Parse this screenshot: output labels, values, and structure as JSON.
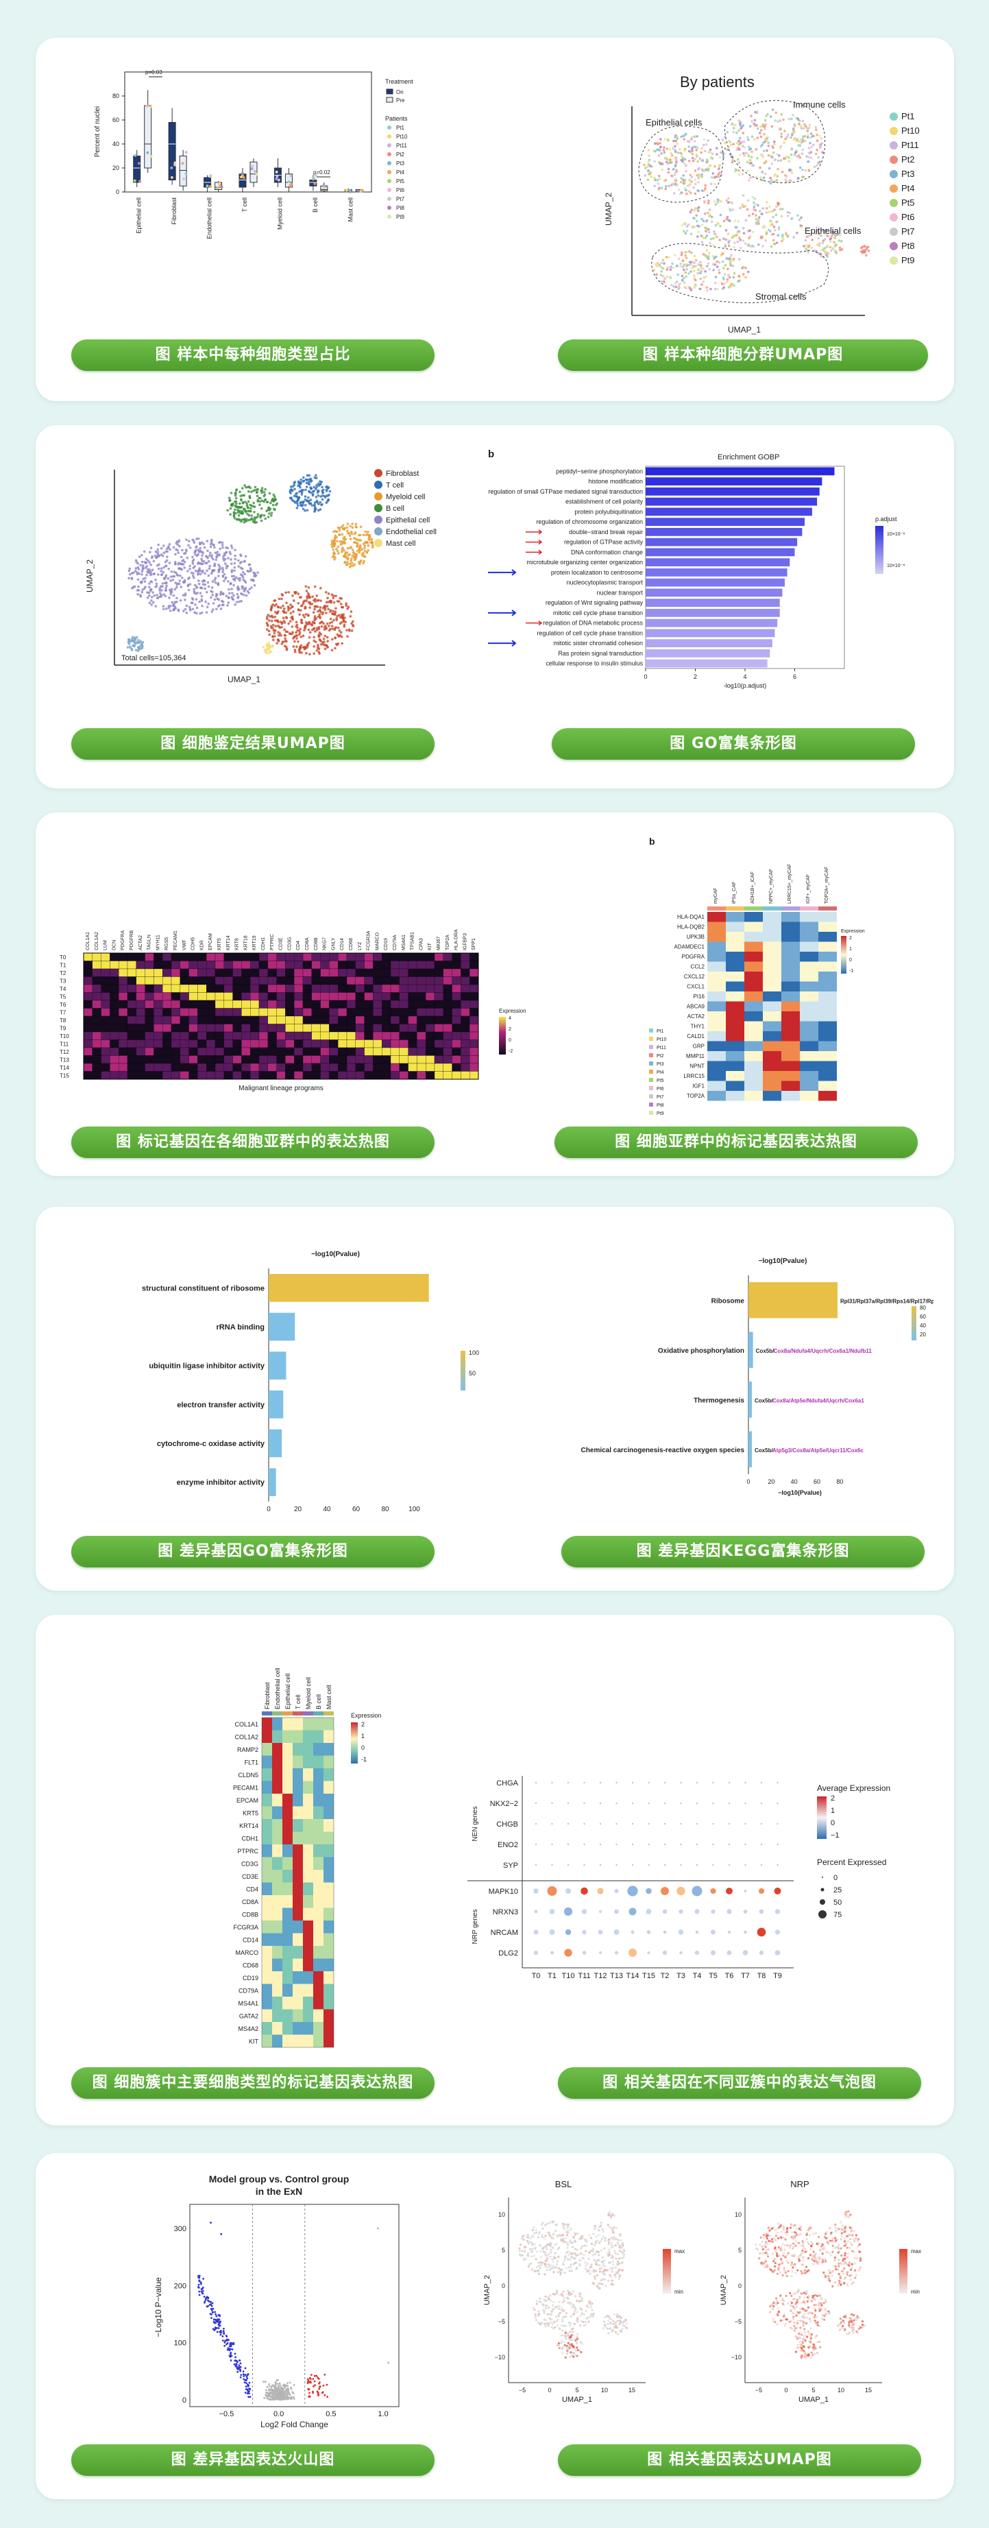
{
  "colors": {
    "page_bg": "#e3f4f2",
    "card_bg": "#ffffff",
    "pill_green": "#5aab37",
    "bar_blue": "#3a3de8",
    "go_gold": "#e9c046",
    "go_blue": "#7fc0e6"
  },
  "sections": [
    {
      "left_caption": "图 样本中每种细胞类型占比",
      "right_caption": "图 样本种细胞分群UMAP图"
    },
    {
      "left_caption": "图 细胞鉴定结果UMAP图",
      "right_caption": "图 GO富集条形图"
    },
    {
      "left_caption": "图 标记基因在各细胞亚群中的表达热图",
      "right_caption": "图 细胞亚群中的标记基因表达热图"
    },
    {
      "left_caption": "图 差异基因GO富集条形图",
      "right_caption": "图 差异基因KEGG富集条形图"
    },
    {
      "left_caption": "图 细胞簇中主要细胞类型的标记基因表达热图",
      "right_caption": "图 相关基因在不同亚簇中的表达气泡图"
    },
    {
      "left_caption": "图 差异基因表达火山图",
      "right_caption": "图 相关基因表达UMAP图"
    }
  ],
  "fig1": {
    "ylabel": "Percent of nuclei",
    "yticks": [
      "0",
      "20",
      "40",
      "60",
      "80"
    ],
    "categories": [
      "Epithelial cell",
      "Fibroblast",
      "Endothelial cell",
      "T cell",
      "Myeloid cell",
      "B cell",
      "Mast cell"
    ],
    "pvalue1": "p=0.03",
    "pvalue2": "p=0.02",
    "treatment_title": "Treatment",
    "treatment": [
      "On",
      "Pre"
    ],
    "patients_title": "Patients",
    "patients": [
      "Pt1",
      "Pt10",
      "Pt11",
      "Pt2",
      "Pt3",
      "Pt4",
      "Pt5",
      "Pt6",
      "Pt7",
      "Pt8",
      "Pt9"
    ],
    "patient_colors": [
      "#8ad1c5",
      "#f6d36b",
      "#c9b3e0",
      "#f08a7c",
      "#7fb2d5",
      "#f5a55a",
      "#a6d46a",
      "#f2b7d2",
      "#c9c9c9",
      "#b97fbd",
      "#d9e8a3"
    ]
  },
  "fig2": {
    "title": "By patients",
    "xlabel": "UMAP_1",
    "ylabel": "UMAP_2",
    "region_labels": [
      "Epithelial cells",
      "Immune cells",
      "Epithelial cells",
      "Stromal cells"
    ],
    "legend": [
      "Pt1",
      "Pt10",
      "Pt11",
      "Pt2",
      "Pt3",
      "Pt4",
      "Pt5",
      "Pt6",
      "Pt7",
      "Pt8",
      "Pt9"
    ]
  },
  "fig3": {
    "xlabel": "UMAP_1",
    "ylabel": "UMAP_2",
    "total": "Total cells=105,364",
    "legend": [
      "Fibroblast",
      "T cell",
      "Myeloid cell",
      "B cell",
      "Epithelial cell",
      "Endothelial cell",
      "Mast cell"
    ],
    "legend_colors": [
      "#c9482b",
      "#2f6db5",
      "#e79a2c",
      "#3b8f3b",
      "#8e84c8",
      "#7fa7c9",
      "#f3dd7a"
    ]
  },
  "fig4": {
    "panel_letter": "b",
    "title": "Enrichment GOBP",
    "xlabel": "-log10(p.adjust)",
    "xticks": [
      "0",
      "2",
      "4",
      "6"
    ],
    "legend_title": "p.adjust",
    "legend_values": [
      "10×10⁻⁸",
      "10×10⁻⁸"
    ],
    "chart_data": {
      "type": "bar",
      "orientation": "horizontal",
      "title": "Enrichment GOBP",
      "xlabel": "-log10(p.adjust)",
      "categories": [
        "peptidyl−serine phosphorylation",
        "histone modification",
        "regulation of small GTPase mediated signal transduction",
        "establishment of cell polarity",
        "protein polyubiquitination",
        "regulation of chromosome organization",
        "double−strand break repair",
        "regulation of GTPase activity",
        "DNA conformation change",
        "microtubule organizing center organization",
        "protein localization to centrosome",
        "nucleocytoplasmic transport",
        "nuclear transport",
        "regulation of Wnt signaling pathway",
        "mitotic cell cycle phase transition",
        "regulation of DNA metabolic process",
        "regulation of cell cycle phase transition",
        "mitotic sister chromatid cohesion",
        "Ras protein signal transduction",
        "cellular response to insulin stimulus"
      ],
      "values": [
        7.6,
        7.1,
        7.0,
        6.9,
        6.7,
        6.4,
        6.3,
        6.1,
        6.0,
        5.8,
        5.7,
        5.6,
        5.5,
        5.4,
        5.4,
        5.3,
        5.2,
        5.1,
        5.0,
        4.9
      ],
      "xlim": [
        0,
        8
      ],
      "red_arrows": [
        6,
        7,
        8,
        15
      ],
      "blue_arrows": [
        10,
        14,
        17
      ]
    }
  },
  "fig5": {
    "xlabel": "Malignant lineage programs",
    "row_labels": [
      "T0",
      "T1",
      "T2",
      "T3",
      "T4",
      "T5",
      "T6",
      "T7",
      "T8",
      "T9",
      "T10",
      "T11",
      "T12",
      "T13",
      "T14",
      "T15"
    ],
    "col_labels": [
      "COL1A1",
      "COL1A2",
      "LUM",
      "DCN",
      "PDGFRA",
      "PDGFRB",
      "ACTA2",
      "TAGLN",
      "MYH11",
      "RGS5",
      "PECAM1",
      "VWF",
      "CDH5",
      "KDR",
      "EPCAM",
      "KRT5",
      "KRT14",
      "KRT8",
      "KRT18",
      "KRT19",
      "CDH1",
      "PTPRC",
      "CD3E",
      "CD3G",
      "CD4",
      "CD8A",
      "CD8B",
      "NKG7",
      "GNLY",
      "CD14",
      "CD68",
      "LYZ",
      "FCGR3A",
      "MARCO",
      "CD19",
      "CD79A",
      "MS4A1",
      "TPSAB1",
      "CPA3",
      "KIT",
      "MKI67",
      "TOP2A",
      "HLA-DRA",
      "IGFBP3",
      "SPP1"
    ],
    "legend_title": "Expression",
    "legend_ticks": [
      "4",
      "2",
      "0",
      "-2"
    ]
  },
  "fig6": {
    "panel_letter": "b",
    "col_labels": [
      "myCAF",
      "iPSs_CAF",
      "ADH1B+_iCAF",
      "NPPC+_myCAF",
      "LRRC15+_myCAF",
      "IGF+_myCAF",
      "TOP2A+_myCAF"
    ],
    "row_labels": [
      "HLA-DQA1",
      "HLA-DQB2",
      "UPK3B",
      "ADAMDEC1",
      "PDGFRA",
      "CCL2",
      "CXCL12",
      "CXCL1",
      "PI16",
      "ABCA9",
      "ACTA2",
      "THY1",
      "CALD1",
      "GRP",
      "MMP11",
      "NPNT",
      "LRRC15",
      "IGF1",
      "TOP2A"
    ],
    "legend_title": "Expression",
    "legend_ticks": [
      "2",
      "1",
      "0",
      "-1"
    ],
    "patient_legend": [
      "Pt1",
      "Pt10",
      "Pt11",
      "Pt2",
      "Pt3",
      "Pt4",
      "Pt5",
      "Pt6",
      "Pt7",
      "Pt8",
      "Pt9"
    ]
  },
  "fig7": {
    "title": "−log10(Pvalue)",
    "xticks": [
      "0",
      "20",
      "40",
      "60",
      "80",
      "100"
    ],
    "legend_ticks": [
      "100",
      "50"
    ],
    "chart_data": {
      "type": "bar",
      "orientation": "horizontal",
      "title": "−log10(Pvalue)",
      "categories": [
        "structural constituent of ribosome",
        "rRNA binding",
        "ubiquitin ligase inhibitor activity",
        "electron transfer activity",
        "cytochrome-c oxidase activity",
        "enzyme inhibitor activity"
      ],
      "values": [
        110,
        18,
        12,
        10,
        9,
        5
      ],
      "xlim": [
        0,
        120
      ]
    }
  },
  "fig8": {
    "title": "−log10(Pvalue)",
    "xlabel": "−log10(Pvalue)",
    "xticks": [
      "0",
      "20",
      "40",
      "60",
      "80"
    ],
    "legend_ticks": [
      "80",
      "60",
      "40",
      "20"
    ],
    "gene_labels": [
      [
        "Rpl31/Rpl37a/Rpl39/Rps14/Rpl17/Rpl29",
        ""
      ],
      [
        "Cox5b/",
        "Cox8a/Ndufa4/Uqcrh/Cox6a1/Ndufb11"
      ],
      [
        "Cox5b/",
        "Cox8a/Atp5e/Ndufa4/Uqcrh/Cox6a1"
      ],
      [
        "Cox5b/",
        "Atp5g3/Cox8a/Atp5e/Uqcr11/Cox6c"
      ]
    ],
    "chart_data": {
      "type": "bar",
      "orientation": "horizontal",
      "title": "−log10(Pvalue)",
      "categories": [
        "Ribosome",
        "Oxidative phosphorylation",
        "Thermogenesis",
        "Chemical carcinogenesis-reactive oxygen species"
      ],
      "values": [
        78,
        4,
        3,
        3
      ],
      "xlim": [
        0,
        90
      ]
    }
  },
  "fig9": {
    "col_labels": [
      "Fibroblast",
      "Endothelial cell",
      "Epithelial cell",
      "T cell",
      "Myeloid cell",
      "B cell",
      "Mast cell"
    ],
    "row_labels": [
      "COL1A1",
      "COL1A2",
      "RAMP2",
      "FLT1",
      "CLDN5",
      "PECAM1",
      "EPCAM",
      "KRT5",
      "KRT14",
      "CDH1",
      "PTPRC",
      "CD3G",
      "CD3E",
      "CD4",
      "CD8A",
      "CD8B",
      "FCGR3A",
      "CD14",
      "MARCO",
      "CD68",
      "CD19",
      "CD79A",
      "MS4A1",
      "GATA2",
      "MS4A2",
      "KIT"
    ],
    "legend_title": "Expression",
    "legend_ticks": [
      "2",
      "1",
      "0",
      "-1"
    ]
  },
  "fig10": {
    "group1": "NEN genes",
    "group2": "NRP genes",
    "rows": [
      "CHGA",
      "NKX2−2",
      "CHGB",
      "ENO2",
      "SYP",
      "MAPK10",
      "NRXN3",
      "NRCAM",
      "DLG2"
    ],
    "cols": [
      "T0",
      "T1",
      "T10",
      "T11",
      "T12",
      "T13",
      "T14",
      "T15",
      "T2",
      "T3",
      "T4",
      "T5",
      "T6",
      "T7",
      "T8",
      "T9"
    ],
    "avg_title": "Average Expression",
    "avg_ticks": [
      "2",
      "1",
      "0",
      "−1"
    ],
    "pct_title": "Percent Expressed",
    "pct_ticks": [
      "0",
      "25",
      "50",
      "75"
    ]
  },
  "fig11": {
    "title_line1": "Model group vs. Control group",
    "title_line2": "in the ExN",
    "xlabel": "Log2 Fold Change",
    "ylabel": "−Log10 P−value",
    "xticks": [
      "−0.5",
      "0.0",
      "0.5",
      "1.0"
    ],
    "yticks": [
      "0",
      "100",
      "200",
      "300"
    ]
  },
  "fig12": {
    "left_title": "BSL",
    "right_title": "NRP",
    "xlabel": "UMAP_1",
    "ylabel": "UMAP_2",
    "legend_max": "max",
    "legend_min": "min",
    "xticks": [
      "−5",
      "0",
      "5",
      "10",
      "15"
    ],
    "yticks": [
      "10",
      "5",
      "0",
      "−5",
      "−10"
    ]
  }
}
